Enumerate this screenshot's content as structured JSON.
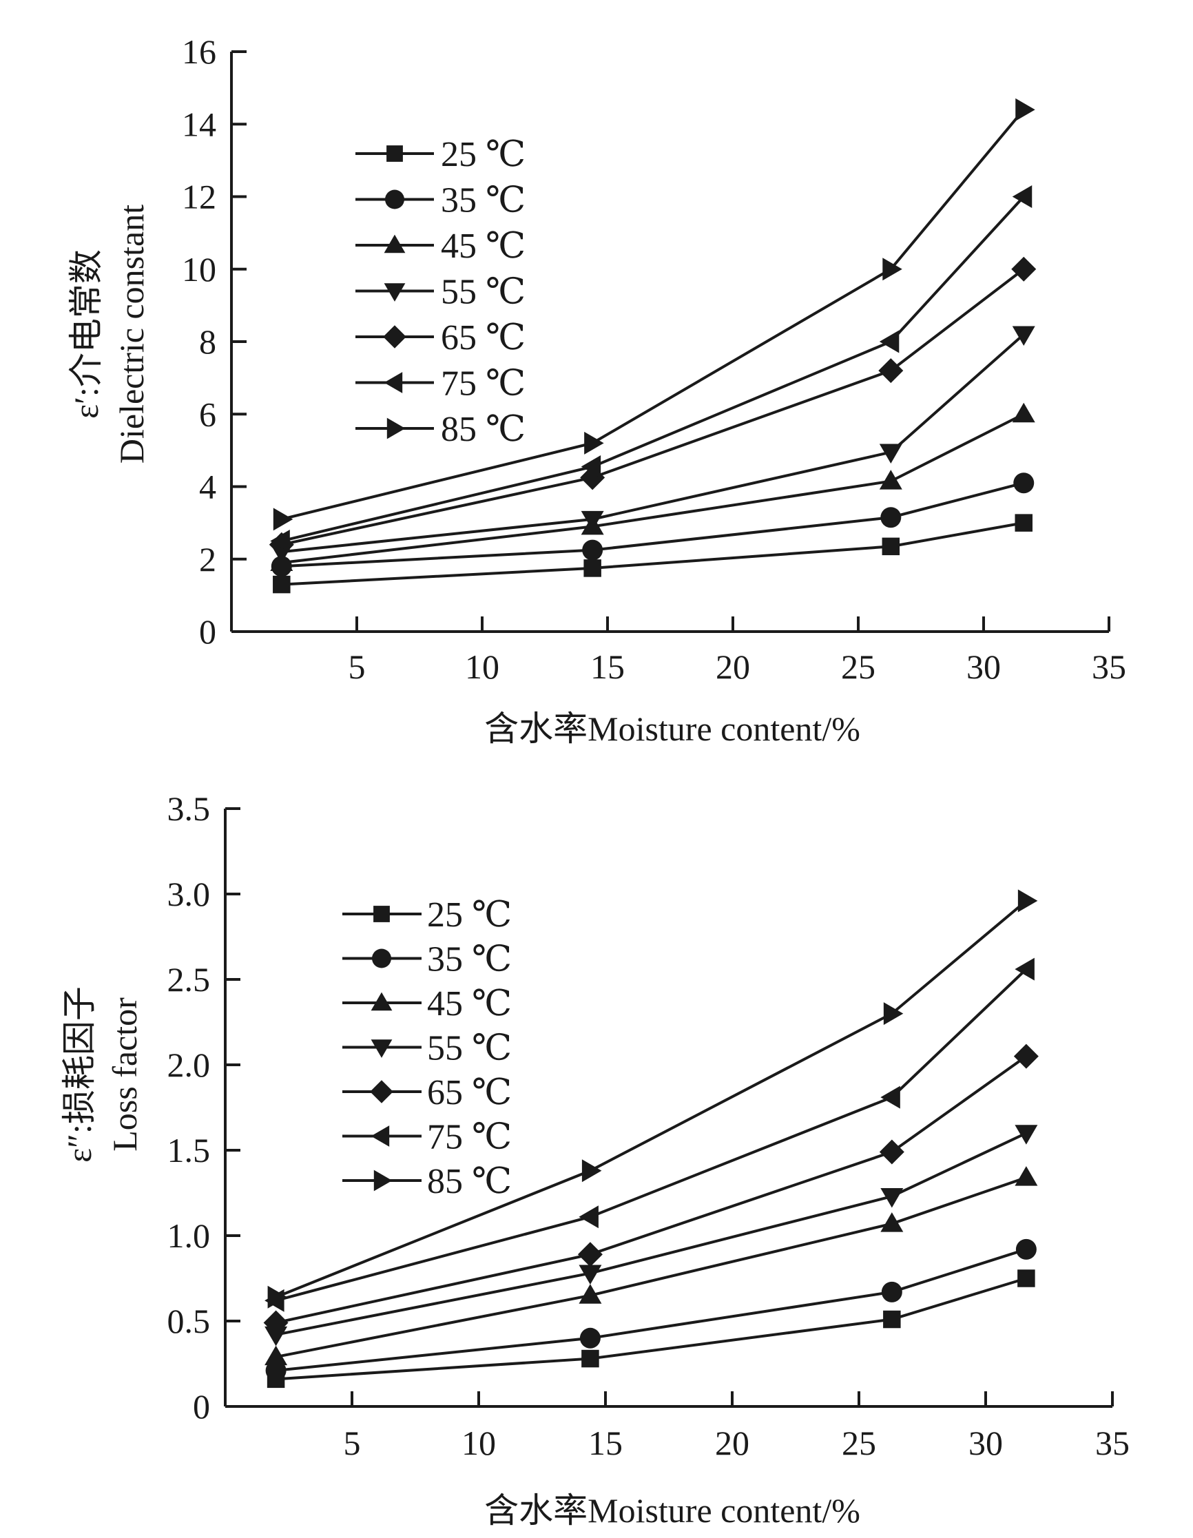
{
  "chart_data": [
    {
      "type": "line",
      "id": "dielectric-constant",
      "title": "",
      "xlabel": "含水率Moisture content/%",
      "ylabel_line1": "ε′:介电常数",
      "ylabel_line2": "Dielectric constant",
      "xlim": [
        0,
        35
      ],
      "ylim": [
        0,
        16
      ],
      "xticks": [
        5,
        10,
        15,
        20,
        25,
        30,
        35
      ],
      "yticks": [
        0,
        2,
        4,
        6,
        8,
        10,
        12,
        14,
        16
      ],
      "ytick_labels": [
        "0",
        "2",
        "4",
        "6",
        "8",
        "10",
        "12",
        "14",
        "16"
      ],
      "grid": false,
      "legend_position": "top-left",
      "x": [
        2.0,
        14.4,
        26.3,
        31.6
      ],
      "series": [
        {
          "name": "25 ℃",
          "marker": "square",
          "values": [
            1.3,
            1.75,
            2.35,
            3.0
          ]
        },
        {
          "name": "35 ℃",
          "marker": "circle",
          "values": [
            1.8,
            2.25,
            3.15,
            4.1
          ]
        },
        {
          "name": "45 ℃",
          "marker": "triangle-up",
          "values": [
            1.9,
            2.9,
            4.15,
            6.0
          ]
        },
        {
          "name": "55 ℃",
          "marker": "triangle-down",
          "values": [
            2.2,
            3.1,
            4.95,
            8.2
          ]
        },
        {
          "name": "65 ℃",
          "marker": "diamond",
          "values": [
            2.4,
            4.25,
            7.2,
            10.0
          ]
        },
        {
          "name": "75 ℃",
          "marker": "triangle-left",
          "values": [
            2.5,
            4.55,
            8.0,
            12.0
          ]
        },
        {
          "name": "85 ℃",
          "marker": "triangle-right",
          "values": [
            3.1,
            5.2,
            10.0,
            14.4
          ]
        }
      ]
    },
    {
      "type": "line",
      "id": "loss-factor",
      "title": "",
      "xlabel": "含水率Moisture content/%",
      "ylabel_line1": "ε″:损耗因子",
      "ylabel_line2": "Loss factor",
      "xlim": [
        0,
        35
      ],
      "ylim": [
        0,
        3.5
      ],
      "xticks": [
        5,
        10,
        15,
        20,
        25,
        30,
        35
      ],
      "yticks": [
        0,
        0.5,
        1.0,
        1.5,
        2.0,
        2.5,
        3.0,
        3.5
      ],
      "ytick_labels": [
        "0",
        "0.5",
        "1.0",
        "1.5",
        "2.0",
        "2.5",
        "3.0",
        "3.5"
      ],
      "grid": false,
      "legend_position": "top-left",
      "x": [
        2.0,
        14.4,
        26.3,
        31.6
      ],
      "series": [
        {
          "name": "25 ℃",
          "marker": "square",
          "values": [
            0.16,
            0.28,
            0.51,
            0.75
          ]
        },
        {
          "name": "35 ℃",
          "marker": "circle",
          "values": [
            0.21,
            0.4,
            0.67,
            0.92
          ]
        },
        {
          "name": "45 ℃",
          "marker": "triangle-up",
          "values": [
            0.29,
            0.65,
            1.07,
            1.34
          ]
        },
        {
          "name": "55 ℃",
          "marker": "triangle-down",
          "values": [
            0.42,
            0.78,
            1.23,
            1.6
          ]
        },
        {
          "name": "65 ℃",
          "marker": "diamond",
          "values": [
            0.49,
            0.89,
            1.49,
            2.05
          ]
        },
        {
          "name": "75 ℃",
          "marker": "triangle-left",
          "values": [
            0.62,
            1.11,
            1.81,
            2.56
          ]
        },
        {
          "name": "85 ℃",
          "marker": "triangle-right",
          "values": [
            0.64,
            1.38,
            2.3,
            2.96
          ]
        }
      ]
    }
  ]
}
